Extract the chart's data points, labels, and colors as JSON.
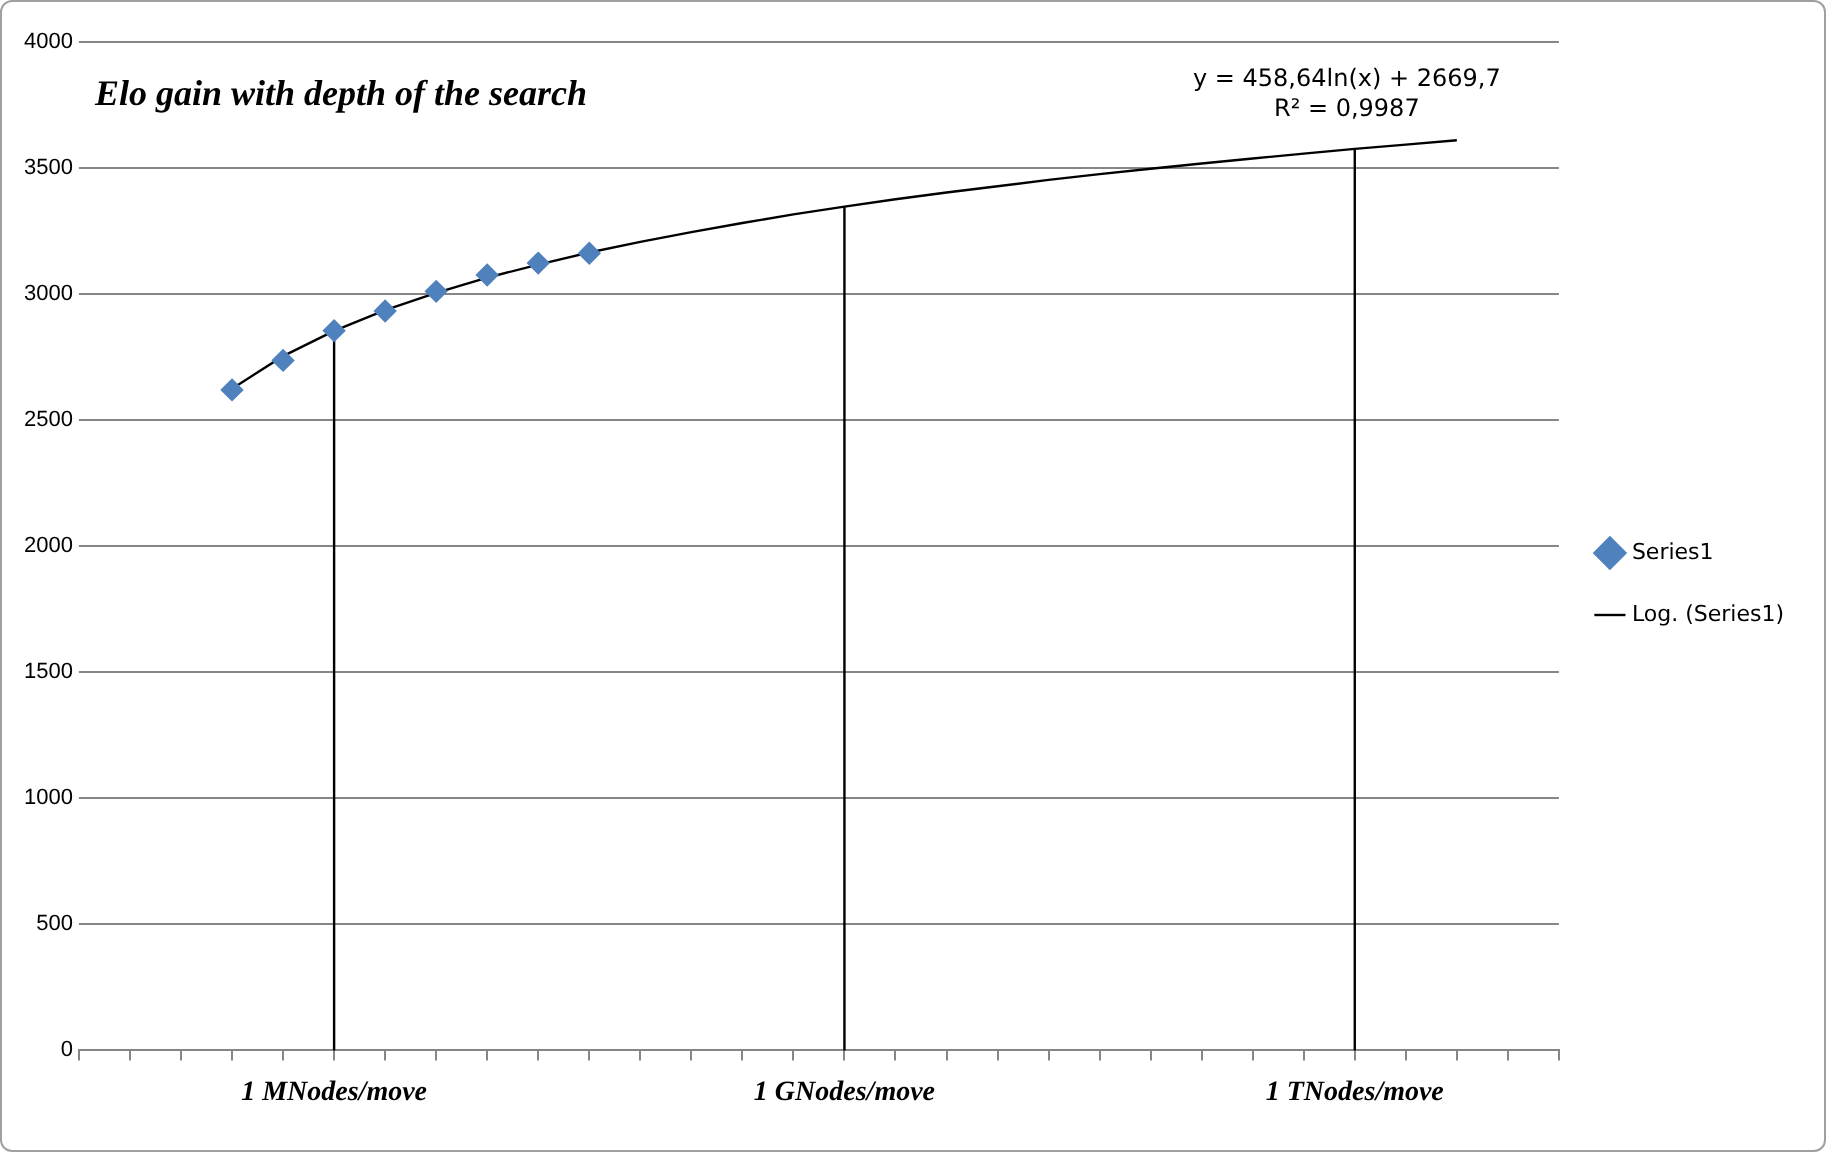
{
  "chart_data": {
    "type": "scatter",
    "title": "Elo gain with depth of the search",
    "categories": [
      null,
      null,
      null,
      null,
      null,
      "1 MNodes/move",
      null,
      null,
      null,
      null,
      null,
      null,
      null,
      null,
      null,
      "1 GNodes/move",
      null,
      null,
      null,
      null,
      null,
      null,
      null,
      null,
      null,
      "1 TNodes/move",
      null,
      null,
      null,
      null
    ],
    "ylim": [
      0,
      4000
    ],
    "yticks": [
      0,
      500,
      1000,
      1500,
      2000,
      2500,
      3000,
      3500,
      4000
    ],
    "grid": "y",
    "legend": "right",
    "marker": "diamond",
    "series": [
      {
        "name": "Series1",
        "color": "#4f81bd",
        "values": [
          null,
          null,
          null,
          2620,
          2737,
          2855,
          2933,
          3011,
          3076,
          3123,
          3162,
          null,
          null,
          null,
          null,
          null,
          null,
          null,
          null,
          null,
          null,
          null,
          null,
          null,
          null,
          null,
          null,
          null,
          null,
          null
        ]
      },
      {
        "name": "Log. (Series1)",
        "type": "line",
        "marker": "none",
        "color": "#000000",
        "values": [
          null,
          null,
          null,
          2625,
          2754,
          2854,
          2936,
          3005,
          3065,
          3117,
          3165,
          3207,
          3246,
          3282,
          3316,
          3347,
          3376,
          3403,
          3428,
          3453,
          3476,
          3497,
          3518,
          3538,
          3557,
          3576,
          3593,
          3610,
          null,
          null
        ]
      }
    ],
    "ref_lines": [
      {
        "axis": "x",
        "value": "1 MNodes/move",
        "color": "#000000"
      },
      {
        "axis": "x",
        "value": "1 GNodes/move",
        "color": "#000000"
      },
      {
        "axis": "x",
        "value": "1 TNodes/move",
        "color": "#000000"
      }
    ],
    "annotations": [
      "y = 458,64ln(x) + 2669,7",
      "R² = 0,9987"
    ]
  }
}
